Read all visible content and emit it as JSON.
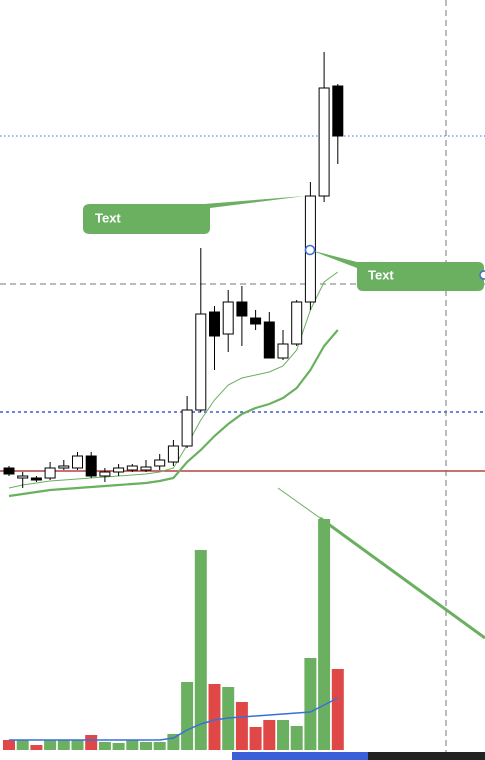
{
  "chart_data": {
    "type": "candlestick",
    "open": [
      52,
      42,
      42,
      42,
      52,
      52,
      64,
      44,
      48,
      50,
      50,
      54,
      58,
      74,
      110,
      208,
      186,
      218,
      202,
      198,
      162,
      176,
      218,
      324,
      434
    ],
    "high": [
      54,
      48,
      44,
      58,
      60,
      68,
      68,
      52,
      56,
      56,
      60,
      66,
      80,
      124,
      272,
      214,
      230,
      234,
      210,
      208,
      190,
      220,
      338,
      468,
      436
    ],
    "low": [
      44,
      32,
      38,
      40,
      50,
      50,
      42,
      38,
      44,
      48,
      48,
      50,
      54,
      72,
      108,
      150,
      168,
      174,
      190,
      162,
      160,
      174,
      210,
      318,
      356
    ],
    "close": [
      46,
      44,
      40,
      52,
      54,
      64,
      44,
      48,
      52,
      54,
      53,
      60,
      74,
      110,
      206,
      184,
      218,
      204,
      196,
      162,
      176,
      218,
      324,
      432,
      384
    ],
    "ylim": [
      0,
      520
    ],
    "ma_lines": [
      {
        "color": "#6ab060",
        "width": 1,
        "values": [
          32,
          35,
          37,
          39,
          40,
          41,
          42,
          43,
          44,
          45,
          46,
          48,
          52,
          75,
          100,
          120,
          135,
          142,
          145,
          148,
          154,
          170,
          210,
          238,
          248
        ]
      },
      {
        "color": "#6ab060",
        "width": 2.2,
        "values": [
          24,
          26,
          28,
          30,
          31,
          32,
          33,
          34,
          35,
          36,
          37,
          39,
          42,
          58,
          70,
          84,
          96,
          106,
          112,
          116,
          122,
          132,
          150,
          174,
          190
        ]
      }
    ],
    "volume": [
      10,
      10,
      5,
      10,
      10,
      10,
      15,
      8,
      7,
      10,
      8,
      8,
      16,
      68,
      200,
      66,
      63,
      48,
      23,
      30,
      30,
      24,
      92,
      231,
      81
    ],
    "volume_ma": {
      "color": "#3a6fd8",
      "values": [
        10,
        10,
        10,
        10,
        10,
        10,
        10,
        10,
        10,
        10,
        10,
        10,
        12,
        20,
        26,
        30,
        32,
        33,
        34,
        35,
        36,
        37,
        38,
        45,
        52
      ]
    },
    "volume_ylim": [
      0,
      240
    ],
    "up_color": "#6ab060",
    "down_color": "#e04848",
    "annotations": [
      "Text",
      "Text"
    ]
  }
}
